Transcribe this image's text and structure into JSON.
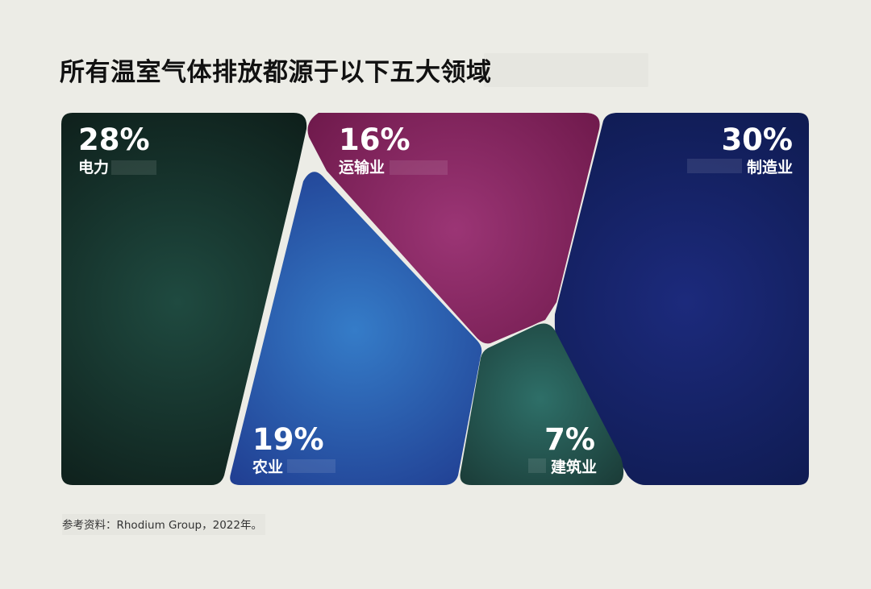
{
  "title": "所有温室气体排放都源于以下五大领域",
  "source": "参考资料：Rhodium Group，2022年。",
  "chart_data": {
    "type": "treemap",
    "title": "所有温室气体排放都源于以下五大领域",
    "unit": "%",
    "sectors": [
      {
        "label": "电力",
        "value": 28,
        "value_text": "28%",
        "color_center": "#1f4a40",
        "color_edge": "#0d1c18"
      },
      {
        "label": "运输业",
        "value": 16,
        "value_text": "16%",
        "color_center": "#9b3575",
        "color_edge": "#6b1748"
      },
      {
        "label": "制造业",
        "value": 30,
        "value_text": "30%",
        "color_center": "#1c2a7c",
        "color_edge": "#0e1a4e"
      },
      {
        "label": "农业",
        "value": 19,
        "value_text": "19%",
        "color_center": "#357cc8",
        "color_edge": "#1f3a8e"
      },
      {
        "label": "建筑业",
        "value": 7,
        "value_text": "7%",
        "color_center": "#2e6f68",
        "color_edge": "#1a3a36"
      }
    ]
  }
}
